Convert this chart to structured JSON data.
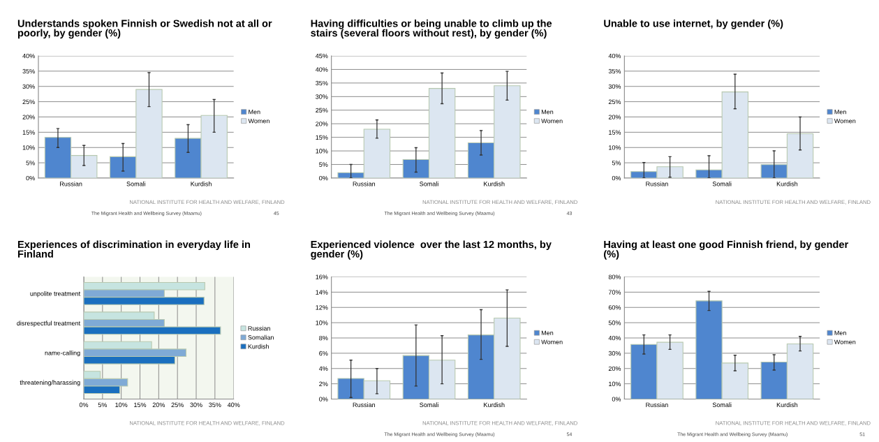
{
  "chart_data": [
    {
      "type": "bar",
      "title": "Understands spoken Finnish or Swedish not at all or poorly, by gender (%)",
      "categories": [
        "Russian",
        "Somali",
        "Kurdish"
      ],
      "series": [
        {
          "name": "Men",
          "color": "#4f86cf",
          "values": [
            13.3,
            7,
            13
          ],
          "errors": [
            [
              10,
              16.2
            ],
            [
              2.3,
              11.3
            ],
            [
              8.4,
              17.5
            ]
          ]
        },
        {
          "name": "Women",
          "color": "#dce6f1",
          "values": [
            7.4,
            29,
            20.5
          ],
          "errors": [
            [
              4.1,
              10.7
            ],
            [
              23.4,
              34.5
            ],
            [
              15,
              25.7
            ]
          ]
        }
      ],
      "ylim": [
        0,
        40
      ],
      "yticks": [
        {
          "value": 0,
          "label": "0%"
        },
        {
          "value": 5,
          "label": "5%"
        },
        {
          "value": 10,
          "label": "10%"
        },
        {
          "value": 15,
          "label": "15%"
        },
        {
          "value": 20,
          "label": "20%"
        },
        {
          "value": 25,
          "label": "25%"
        },
        {
          "value": 30,
          "label": "30%"
        },
        {
          "value": 35,
          "label": "35%"
        },
        {
          "value": 40,
          "label": "40%"
        }
      ],
      "grid": "y",
      "legend": "right",
      "annotations": [
        "NATIONAL INSTITUTE FOR HEALTH AND WELFARE, FINLAND",
        "The Migrant Health and Wellbeing Survey (Maamu)",
        "45"
      ]
    },
    {
      "type": "bar",
      "title": "Having difficulties or being unable to climb up the stairs (several floors without rest), by gender (%)",
      "categories": [
        "Russian",
        "Somali",
        "Kurdish"
      ],
      "series": [
        {
          "name": "Men",
          "color": "#4f86cf",
          "values": [
            2,
            6.8,
            13
          ],
          "errors": [
            [
              0,
              5
            ],
            [
              2.2,
              11.2
            ],
            [
              8.5,
              17.5
            ]
          ]
        },
        {
          "name": "Women",
          "color": "#dce6f1",
          "values": [
            18,
            33,
            34
          ],
          "errors": [
            [
              14.7,
              21.4
            ],
            [
              27.4,
              38.7
            ],
            [
              28.7,
              39.3
            ]
          ]
        }
      ],
      "ylim": [
        0,
        45
      ],
      "yticks": [
        {
          "value": 0,
          "label": "0%"
        },
        {
          "value": 5,
          "label": "5%"
        },
        {
          "value": 10,
          "label": "10%"
        },
        {
          "value": 15,
          "label": "15%"
        },
        {
          "value": 20,
          "label": "20%"
        },
        {
          "value": 25,
          "label": "25%"
        },
        {
          "value": 30,
          "label": "30%"
        },
        {
          "value": 35,
          "label": "35%"
        },
        {
          "value": 40,
          "label": "40%"
        },
        {
          "value": 45,
          "label": "45%"
        }
      ],
      "grid": "y",
      "legend": "right",
      "annotations": [
        "NATIONAL INSTITUTE FOR HEALTH AND WELFARE, FINLAND",
        "The Migrant Health and Wellbeing Survey (Maamu)",
        "43"
      ]
    },
    {
      "type": "bar",
      "title": "Unable to use internet, by gender (%)",
      "categories": [
        "Russian",
        "Somali",
        "Kurdish"
      ],
      "series": [
        {
          "name": "Men",
          "color": "#4f86cf",
          "values": [
            2.1,
            2.7,
            4.4
          ],
          "errors": [
            [
              0,
              5.1
            ],
            [
              0,
              7.3
            ],
            [
              0,
              8.9
            ]
          ]
        },
        {
          "name": "Women",
          "color": "#dce6f1",
          "values": [
            3.7,
            28.2,
            14.5
          ],
          "errors": [
            [
              0.3,
              7
            ],
            [
              22.7,
              34
            ],
            [
              9.2,
              20
            ]
          ]
        }
      ],
      "ylim": [
        0,
        40
      ],
      "yticks": [
        {
          "value": 0,
          "label": "0%"
        },
        {
          "value": 5,
          "label": "5%"
        },
        {
          "value": 10,
          "label": "10%"
        },
        {
          "value": 15,
          "label": "15%"
        },
        {
          "value": 20,
          "label": "20%"
        },
        {
          "value": 25,
          "label": "25%"
        },
        {
          "value": 30,
          "label": "30%"
        },
        {
          "value": 35,
          "label": "35%"
        },
        {
          "value": 40,
          "label": "40%"
        }
      ],
      "grid": "y",
      "legend": "right",
      "annotations": [
        "NATIONAL INSTITUTE FOR HEALTH AND WELFARE, FINLAND"
      ]
    },
    {
      "type": "bar",
      "orientation": "horizontal",
      "title": "Experiences of discrimination in everyday life in Finland",
      "categories": [
        "unpolite treatment",
        "disrespectful treatment",
        "name-calling",
        "threatening/harassing"
      ],
      "series": [
        {
          "name": "Russian",
          "color": "#c6e4e0",
          "values": [
            32.3,
            18.8,
            18.1,
            4.4
          ]
        },
        {
          "name": "Somalian",
          "color": "#7faad6",
          "values": [
            21.5,
            21.5,
            27.3,
            11.7
          ]
        },
        {
          "name": "Kurdish",
          "color": "#1a6fbf",
          "values": [
            32.1,
            36.5,
            24.3,
            9.6
          ]
        }
      ],
      "xlim": [
        0,
        40
      ],
      "xticks": [
        {
          "value": 0,
          "label": "0%"
        },
        {
          "value": 5,
          "label": "5%"
        },
        {
          "value": 10,
          "label": "10%"
        },
        {
          "value": 15,
          "label": "15%"
        },
        {
          "value": 20,
          "label": "20%"
        },
        {
          "value": 25,
          "label": "25%"
        },
        {
          "value": 30,
          "label": "30%"
        },
        {
          "value": 35,
          "label": "35%"
        },
        {
          "value": 40,
          "label": "40%"
        }
      ],
      "grid": "x",
      "legend": "right",
      "annotations": [
        "NATIONAL INSTITUTE FOR HEALTH AND WELFARE, FINLAND"
      ]
    },
    {
      "type": "bar",
      "title": "Experienced violence  over the last 12 months, by gender (%)",
      "categories": [
        "Russian",
        "Somali",
        "Kurdish"
      ],
      "series": [
        {
          "name": "Men",
          "color": "#4f86cf",
          "values": [
            2.7,
            5.7,
            8.4
          ],
          "errors": [
            [
              0.2,
              5.1
            ],
            [
              1.7,
              9.7
            ],
            [
              5.2,
              11.7
            ]
          ]
        },
        {
          "name": "Women",
          "color": "#dce6f1",
          "values": [
            2.4,
            5.1,
            10.6
          ],
          "errors": [
            [
              0.7,
              4
            ],
            [
              2,
              8.3
            ],
            [
              6.9,
              14.3
            ]
          ]
        }
      ],
      "ylim": [
        0,
        16
      ],
      "yticks": [
        {
          "value": 0,
          "label": "0%"
        },
        {
          "value": 2,
          "label": "2%"
        },
        {
          "value": 4,
          "label": "4%"
        },
        {
          "value": 6,
          "label": "6%"
        },
        {
          "value": 8,
          "label": "8%"
        },
        {
          "value": 10,
          "label": "10%"
        },
        {
          "value": 12,
          "label": "12%"
        },
        {
          "value": 14,
          "label": "14%"
        },
        {
          "value": 16,
          "label": "16%"
        }
      ],
      "grid": "y",
      "legend": "right",
      "annotations": [
        "NATIONAL INSTITUTE FOR HEALTH AND WELFARE, FINLAND",
        "The Migrant Health and Wellbeing Survey (Maamu)",
        "54"
      ]
    },
    {
      "type": "bar",
      "title": "Having at least one good Finnish friend, by gender (%)",
      "categories": [
        "Russian",
        "Somali",
        "Kurdish"
      ],
      "series": [
        {
          "name": "Men",
          "color": "#4f86cf",
          "values": [
            35.8,
            64.3,
            24.2
          ],
          "errors": [
            [
              29.5,
              42
            ],
            [
              58,
              70.5
            ],
            [
              19,
              29
            ]
          ]
        },
        {
          "name": "Women",
          "color": "#dce6f1",
          "values": [
            37.2,
            23.6,
            36.1
          ],
          "errors": [
            [
              32.5,
              42
            ],
            [
              18.5,
              28.7
            ],
            [
              31.5,
              41
            ]
          ]
        }
      ],
      "ylim": [
        0,
        80
      ],
      "yticks": [
        {
          "value": 0,
          "label": "0%"
        },
        {
          "value": 10,
          "label": "10%"
        },
        {
          "value": 20,
          "label": "20%"
        },
        {
          "value": 30,
          "label": "30%"
        },
        {
          "value": 40,
          "label": "40%"
        },
        {
          "value": 50,
          "label": "50%"
        },
        {
          "value": 60,
          "label": "60%"
        },
        {
          "value": 70,
          "label": "70%"
        },
        {
          "value": 80,
          "label": "80%"
        }
      ],
      "grid": "y",
      "legend": "right",
      "annotations": [
        "NATIONAL INSTITUTE FOR HEALTH AND WELFARE, FINLAND",
        "The Migrant Health and Wellbeing Survey (Maamu)",
        "51"
      ]
    }
  ]
}
